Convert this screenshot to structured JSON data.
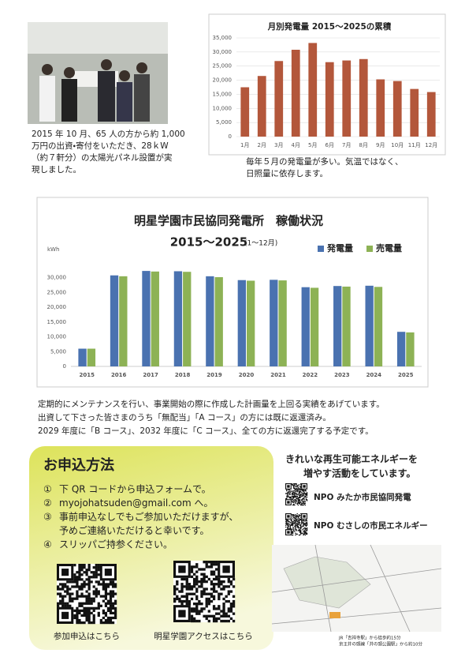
{
  "photo_caption": [
    "2015 年 10 月、65 人の方から約 1,000",
    "万円の出資・寄付をいただき、28ｋW",
    "（約７軒分）の太陽光パネル設置が実",
    "現しました。"
  ],
  "chart_data": [
    {
      "type": "bar",
      "title": "月別発電量  2015～2025の累積",
      "categories": [
        "1月",
        "2月",
        "3月",
        "4月",
        "5月",
        "6月",
        "7月",
        "8月",
        "9月",
        "10月",
        "11月",
        "12月"
      ],
      "values": [
        17500,
        21500,
        26800,
        30800,
        33200,
        26400,
        27000,
        27500,
        20300,
        19700,
        16900,
        15800
      ],
      "color": "#b3573b",
      "ylim": [
        0,
        35000
      ],
      "yticks": [
        0,
        {
          "value": 5000,
          "label": "5,000"
        },
        {
          "value": 10000,
          "label": "10,000"
        },
        {
          "value": 15000,
          "label": "15,000"
        },
        {
          "value": 20000,
          "label": "20,000"
        },
        {
          "value": 25000,
          "label": "25,000"
        },
        {
          "value": 30000,
          "label": "30,000"
        },
        {
          "value": 35000,
          "label": "35,000"
        }
      ],
      "grid": true
    },
    {
      "type": "bar",
      "title": "明星学園市民協同発電所　稼働状況",
      "subtitle": "2015～2025",
      "period": "(1～12月)",
      "y_label": "kWh",
      "categories": [
        "2015",
        "2016",
        "2017",
        "2018",
        "2019",
        "2020",
        "2021",
        "2022",
        "2023",
        "2024",
        "2025"
      ],
      "series": [
        {
          "name": "発電量",
          "color": "#4a72b0",
          "values": [
            6000,
            30800,
            32300,
            32200,
            30500,
            29200,
            29300,
            26800,
            27200,
            27300,
            11700
          ]
        },
        {
          "name": "売電量",
          "color": "#8db255",
          "values": [
            6000,
            30500,
            32100,
            32000,
            30200,
            29000,
            29100,
            26600,
            27000,
            26900,
            11500
          ]
        }
      ],
      "ylim": [
        0,
        35000
      ],
      "yticks": [
        0,
        {
          "value": 5000,
          "label": "5,000"
        },
        {
          "value": 10000,
          "label": "10,000"
        },
        {
          "value": 15000,
          "label": "15,000"
        },
        {
          "value": 20000,
          "label": "20,000"
        },
        {
          "value": 25000,
          "label": "25,000"
        },
        {
          "value": 30000,
          "label": "30,000"
        }
      ],
      "grid": false,
      "legend": "top-right"
    }
  ],
  "chart_caption": [
    "毎年５月の発電量が多い。気温ではなく、",
    "日照量に依存します。"
  ],
  "notes": [
    "定期的にメンテナンスを行い、事業開始の際に作成した計画量を上回る実績をあげています。",
    "出資して下さった皆さまのうち「無配当」「A コース」の方には既に返還済み。",
    "2029 年度に「B コース」、2032 年度に「C コース」、全ての方に返還完了する予定です。"
  ],
  "application": {
    "title": "お申込方法",
    "items": [
      {
        "marker": "①",
        "lines": [
          "下 QR コードから申込フォームで。"
        ]
      },
      {
        "marker": "②",
        "lines": [
          "myojohatsuden@gmail.com へ。"
        ]
      },
      {
        "marker": "③",
        "lines": [
          "事前申込なしでもご参加いただけますが、",
          "予めご連絡いただけると幸いです。"
        ]
      },
      {
        "marker": "④",
        "lines": [
          "スリッパご持参ください。"
        ]
      }
    ],
    "qr_captions": [
      "参加申込はこちら",
      "明星学園アクセスはこちら"
    ]
  },
  "activity": {
    "heading": [
      "きれいな再生可能エネルギーを",
      "増やす活動をしています。"
    ],
    "orgs": [
      "NPO みたか市民協同発電",
      "NPO むさしの市民エネルギー"
    ],
    "map_note": [
      "JR「吉祥寺駅」から徒歩約15分",
      "京王井の頭線「井の頭公園駅」から約10分"
    ]
  }
}
